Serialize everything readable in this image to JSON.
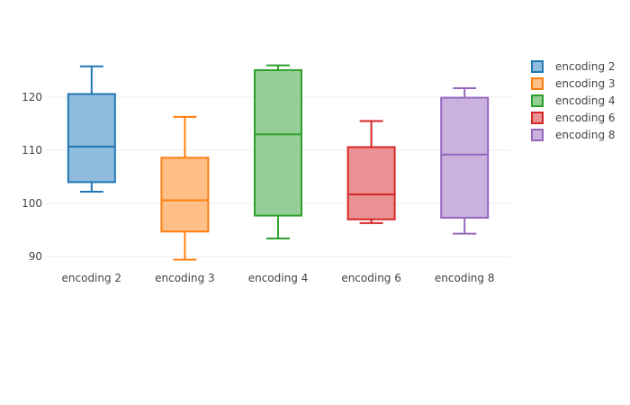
{
  "chart_data": {
    "type": "box",
    "ylim": [
      88,
      130
    ],
    "yticks": [
      90,
      100,
      110,
      120
    ],
    "grid": true,
    "legend_placement": "top-right",
    "series": [
      {
        "name": "encoding 2",
        "color": "#1f77b4",
        "fill": "#8fbbdc",
        "min": 102.2,
        "q1": 104.0,
        "median": 110.7,
        "q3": 120.6,
        "max": 125.8
      },
      {
        "name": "encoding 3",
        "color": "#ff7f0e",
        "fill": "#ffbf86",
        "min": 89.4,
        "q1": 94.7,
        "median": 100.6,
        "q3": 108.6,
        "max": 116.3
      },
      {
        "name": "encoding 4",
        "color": "#2ca02c",
        "fill": "#95cf95",
        "min": 93.4,
        "q1": 97.7,
        "median": 113.0,
        "q3": 125.1,
        "max": 126.0
      },
      {
        "name": "encoding 6",
        "color": "#d62728",
        "fill": "#ea9293",
        "min": 96.3,
        "q1": 97.0,
        "median": 101.7,
        "q3": 110.6,
        "max": 115.5
      },
      {
        "name": "encoding 8",
        "color": "#9467bd",
        "fill": "#c9b2de",
        "min": 94.3,
        "q1": 97.3,
        "median": 109.2,
        "q3": 119.9,
        "max": 121.7
      }
    ]
  }
}
